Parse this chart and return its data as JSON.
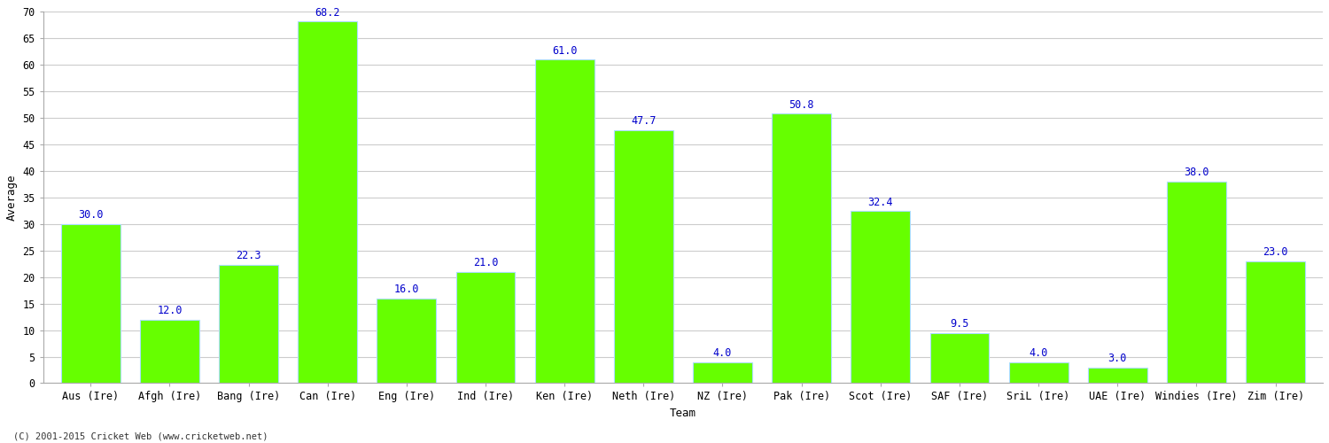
{
  "categories": [
    "Aus (Ire)",
    "Afgh (Ire)",
    "Bang (Ire)",
    "Can (Ire)",
    "Eng (Ire)",
    "Ind (Ire)",
    "Ken (Ire)",
    "Neth (Ire)",
    "NZ (Ire)",
    "Pak (Ire)",
    "Scot (Ire)",
    "SAF (Ire)",
    "SriL (Ire)",
    "UAE (Ire)",
    "Windies (Ire)",
    "Zim (Ire)"
  ],
  "values": [
    30.0,
    12.0,
    22.3,
    68.2,
    16.0,
    21.0,
    61.0,
    47.7,
    4.0,
    50.8,
    32.4,
    9.5,
    4.0,
    3.0,
    38.0,
    23.0
  ],
  "bar_color": "#66ff00",
  "bar_edge_color": "#aaddff",
  "label_color": "#0000cc",
  "ylabel": "Average",
  "xlabel": "Team",
  "ylim": [
    0,
    70
  ],
  "yticks": [
    0,
    5,
    10,
    15,
    20,
    25,
    30,
    35,
    40,
    45,
    50,
    55,
    60,
    65,
    70
  ],
  "grid_color": "#cccccc",
  "background_color": "#ffffff",
  "plot_bg_color": "#ffffff",
  "footer_text": "(C) 2001-2015 Cricket Web (www.cricketweb.net)",
  "label_fontsize": 8.5,
  "axis_label_fontsize": 9,
  "tick_fontsize": 8.5,
  "spine_color": "#aaaaaa"
}
